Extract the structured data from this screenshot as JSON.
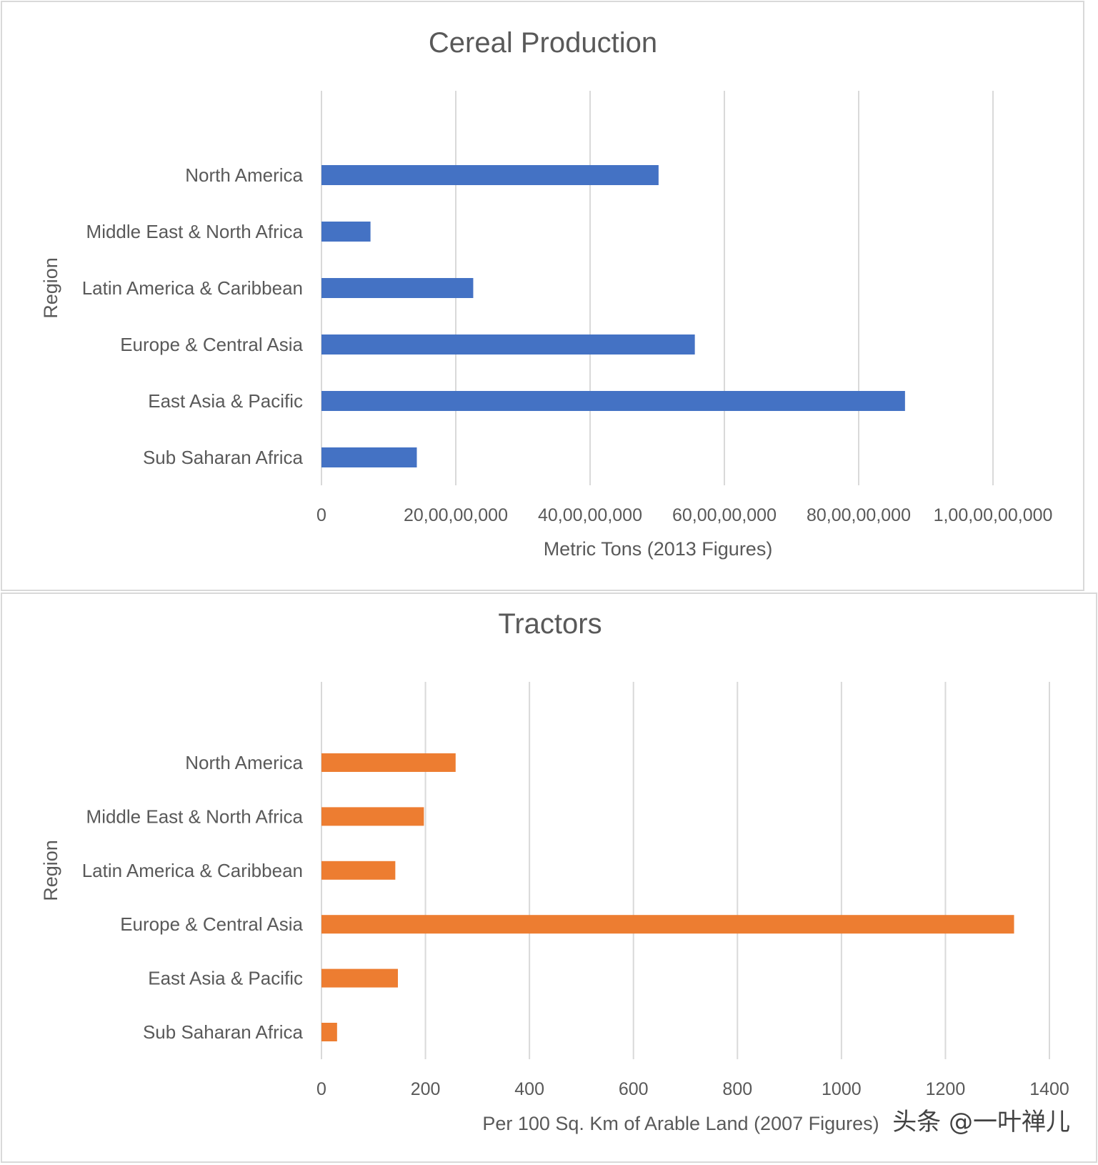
{
  "chart_data": [
    {
      "type": "bar",
      "orientation": "horizontal",
      "title": "Cereal Production",
      "xlabel": "Metric Tons (2013 Figures)",
      "ylabel": "Region",
      "categories": [
        "North America",
        "Middle East & North Africa",
        "Latin America & Caribbean",
        "Europe & Central Asia",
        "East Asia & Pacific",
        "Sub Saharan Africa"
      ],
      "values": [
        502000000,
        73000000,
        226000000,
        556000000,
        869000000,
        142000000
      ],
      "xlim": [
        0,
        1000000000
      ],
      "xticks": [
        "0",
        "20,00,00,000",
        "40,00,00,000",
        "60,00,00,000",
        "80,00,00,000",
        "1,00,00,00,000"
      ],
      "grid": true,
      "color": "#4472C4"
    },
    {
      "type": "bar",
      "orientation": "horizontal",
      "title": "Tractors",
      "xlabel": "Per 100 Sq. Km of Arable Land (2007 Figures)",
      "ylabel": "Region",
      "categories": [
        "North America",
        "Middle East & North Africa",
        "Latin America & Caribbean",
        "Europe & Central Asia",
        "East Asia & Pacific",
        "Sub Saharan Africa"
      ],
      "values": [
        258,
        197,
        142,
        1332,
        147,
        30
      ],
      "xlim": [
        0,
        1400
      ],
      "xticks": [
        "0",
        "200",
        "400",
        "600",
        "800",
        "1000",
        "1200",
        "1400"
      ],
      "grid": true,
      "color": "#ED7D31"
    }
  ],
  "watermark": "头条 @一叶禅儿"
}
